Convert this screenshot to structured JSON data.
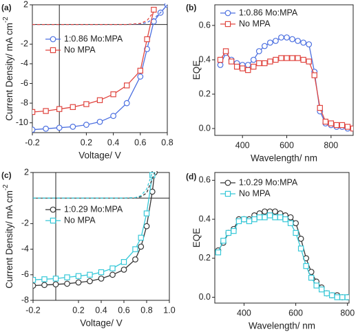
{
  "chart_data": [
    {
      "type": "line",
      "panel_label": "(a)",
      "xlabel": "Voltage/ V",
      "ylabel": "Current Density/ mA cm",
      "ylabel_sup": "-2",
      "x": [
        -0.2,
        -0.1,
        0,
        0.1,
        0.2,
        0.3,
        0.4,
        0.5,
        0.6,
        0.65,
        0.7,
        0.75,
        0.8
      ],
      "series": [
        {
          "name": "1:0.86 Mo:MPA",
          "color": "#4a6ee0",
          "marker": "circle",
          "values": [
            -10.7,
            -10.6,
            -10.5,
            -10.4,
            -10.2,
            -9.9,
            -9.3,
            -8.0,
            -5.3,
            -2.5,
            0.3,
            1.2,
            2.0
          ]
        },
        {
          "name": "No MPA",
          "color": "#e0453f",
          "marker": "square",
          "values": [
            -8.9,
            -8.8,
            -8.6,
            -8.4,
            -8.1,
            -7.7,
            -7.1,
            -6.2,
            -4.7,
            -1.5,
            1.5,
            null,
            null
          ]
        },
        {
          "color": "#4a6ee0",
          "dash": true,
          "values": [
            0,
            0,
            0,
            0,
            0,
            0,
            0,
            0,
            0.05,
            0.2,
            0.6,
            1.2,
            2.0
          ]
        },
        {
          "color": "#e0453f",
          "dash": true,
          "values": [
            0,
            0,
            0,
            0,
            0,
            0,
            0,
            0,
            0.1,
            0.4,
            1.3,
            null,
            null
          ]
        }
      ],
      "xlim": [
        -0.2,
        0.8
      ],
      "ylim": [
        -11,
        2
      ],
      "xticks": [
        -0.2,
        0.2,
        0.4,
        0.6,
        0.8
      ],
      "yticks": [
        2,
        -2,
        -4,
        -6,
        -8,
        -10
      ],
      "zero_lines": true,
      "legend": "upper left"
    },
    {
      "type": "line",
      "panel_label": "(b)",
      "xlabel": "Wavelength/ nm",
      "ylabel": "EQE",
      "x": [
        300,
        325,
        350,
        375,
        400,
        425,
        450,
        475,
        500,
        525,
        550,
        575,
        600,
        625,
        650,
        675,
        700,
        725,
        750,
        775,
        800,
        825,
        850,
        875,
        900
      ],
      "series": [
        {
          "name": "1:0.86 Mo:MPA",
          "color": "#4a6ee0",
          "marker": "circle",
          "values": [
            0.37,
            0.44,
            0.4,
            0.38,
            0.37,
            0.37,
            0.4,
            0.45,
            0.48,
            0.5,
            0.51,
            0.53,
            0.53,
            0.52,
            0.51,
            0.5,
            0.49,
            0.33,
            0.1,
            0.03,
            0.02,
            0.01,
            0.01,
            0.0,
            0.0
          ]
        },
        {
          "name": "No MPA",
          "color": "#e0453f",
          "marker": "square",
          "values": [
            0.4,
            0.45,
            0.39,
            0.36,
            0.35,
            0.34,
            0.36,
            0.38,
            0.38,
            0.39,
            0.4,
            0.41,
            0.41,
            0.41,
            0.41,
            0.4,
            0.39,
            0.31,
            0.12,
            0.04,
            0.03,
            0.02,
            0.02,
            0.01,
            0.0
          ]
        }
      ],
      "xlim": [
        275,
        900
      ],
      "ylim": [
        -0.04,
        0.72
      ],
      "xticks": [
        400,
        600,
        800
      ],
      "yticks": [
        {
          "value": 0,
          "label": "0.0"
        },
        0.2,
        0.4,
        0.6
      ],
      "legend": "upper left"
    },
    {
      "type": "line",
      "panel_label": "(c)",
      "xlabel": "Voltage/ V",
      "ylabel": "Current Density/ mA cm",
      "ylabel_sup": "-2",
      "x": [
        -0.2,
        -0.1,
        0,
        0.1,
        0.2,
        0.3,
        0.4,
        0.5,
        0.6,
        0.7,
        0.75,
        0.8,
        0.85,
        0.87
      ],
      "series": [
        {
          "name": "1:0.29 Mo:MPA",
          "color": "#333333",
          "marker": "circle",
          "values": [
            -6.85,
            -6.8,
            -6.75,
            -6.7,
            -6.6,
            -6.5,
            -6.3,
            -6.0,
            -5.6,
            -4.8,
            -3.8,
            -2.2,
            0.5,
            2.0
          ]
        },
        {
          "name": "No MPA",
          "color": "#36c8d8",
          "marker": "square",
          "values": [
            -6.4,
            -6.35,
            -6.3,
            -6.2,
            -6.1,
            -6.0,
            -5.8,
            -5.5,
            -5.0,
            -4.0,
            -3.1,
            -1.2,
            1.8,
            null
          ]
        },
        {
          "color": "#333333",
          "dash": true,
          "values": [
            0,
            0,
            0,
            0,
            0,
            0,
            0,
            0,
            0,
            0.02,
            0.1,
            0.4,
            1.5,
            2.0
          ]
        },
        {
          "color": "#36c8d8",
          "dash": true,
          "values": [
            0,
            0,
            0,
            0,
            0,
            0,
            0,
            0,
            0,
            0.03,
            0.2,
            0.7,
            2.0,
            null
          ]
        }
      ],
      "xlim": [
        -0.2,
        1.0
      ],
      "ylim": [
        -8,
        2
      ],
      "xticks": [
        -0.2,
        0.2,
        0.4,
        0.6,
        0.8,
        {
          "value": 1,
          "label": "1.0"
        }
      ],
      "yticks": [
        2,
        -2,
        -4,
        -6,
        -8
      ],
      "zero_lines": true,
      "legend": "upper left"
    },
    {
      "type": "line",
      "panel_label": "(d)",
      "xlabel": "Wavelength/ nm",
      "ylabel": "EQE",
      "x": [
        300,
        320,
        340,
        360,
        380,
        400,
        420,
        440,
        460,
        480,
        500,
        520,
        540,
        560,
        580,
        600,
        620,
        640,
        660,
        680,
        700,
        720,
        740,
        760,
        780,
        800
      ],
      "series": [
        {
          "name": "1:0.29 Mo:MPA",
          "color": "#333333",
          "marker": "circle",
          "values": [
            0.24,
            0.28,
            0.33,
            0.35,
            0.4,
            0.4,
            0.4,
            0.42,
            0.43,
            0.44,
            0.44,
            0.44,
            0.43,
            0.42,
            0.41,
            0.38,
            0.3,
            0.2,
            0.13,
            0.08,
            0.05,
            0.02,
            0.01,
            0.01,
            0.0,
            0.0
          ]
        },
        {
          "name": "No MPA",
          "color": "#36c8d8",
          "marker": "square",
          "values": [
            0.23,
            0.29,
            0.33,
            0.34,
            0.39,
            0.4,
            0.39,
            0.4,
            0.41,
            0.41,
            0.42,
            0.41,
            0.41,
            0.4,
            0.38,
            0.33,
            0.25,
            0.16,
            0.1,
            0.06,
            0.04,
            0.02,
            0.01,
            0.0,
            0.0,
            0.0
          ]
        }
      ],
      "xlim": [
        287,
        806
      ],
      "ylim": [
        -0.03,
        0.64
      ],
      "xticks": [
        400,
        600,
        800
      ],
      "yticks": [
        {
          "value": 0,
          "label": "0.0"
        },
        0.2,
        0.4,
        0.6
      ],
      "legend": "upper left"
    }
  ]
}
